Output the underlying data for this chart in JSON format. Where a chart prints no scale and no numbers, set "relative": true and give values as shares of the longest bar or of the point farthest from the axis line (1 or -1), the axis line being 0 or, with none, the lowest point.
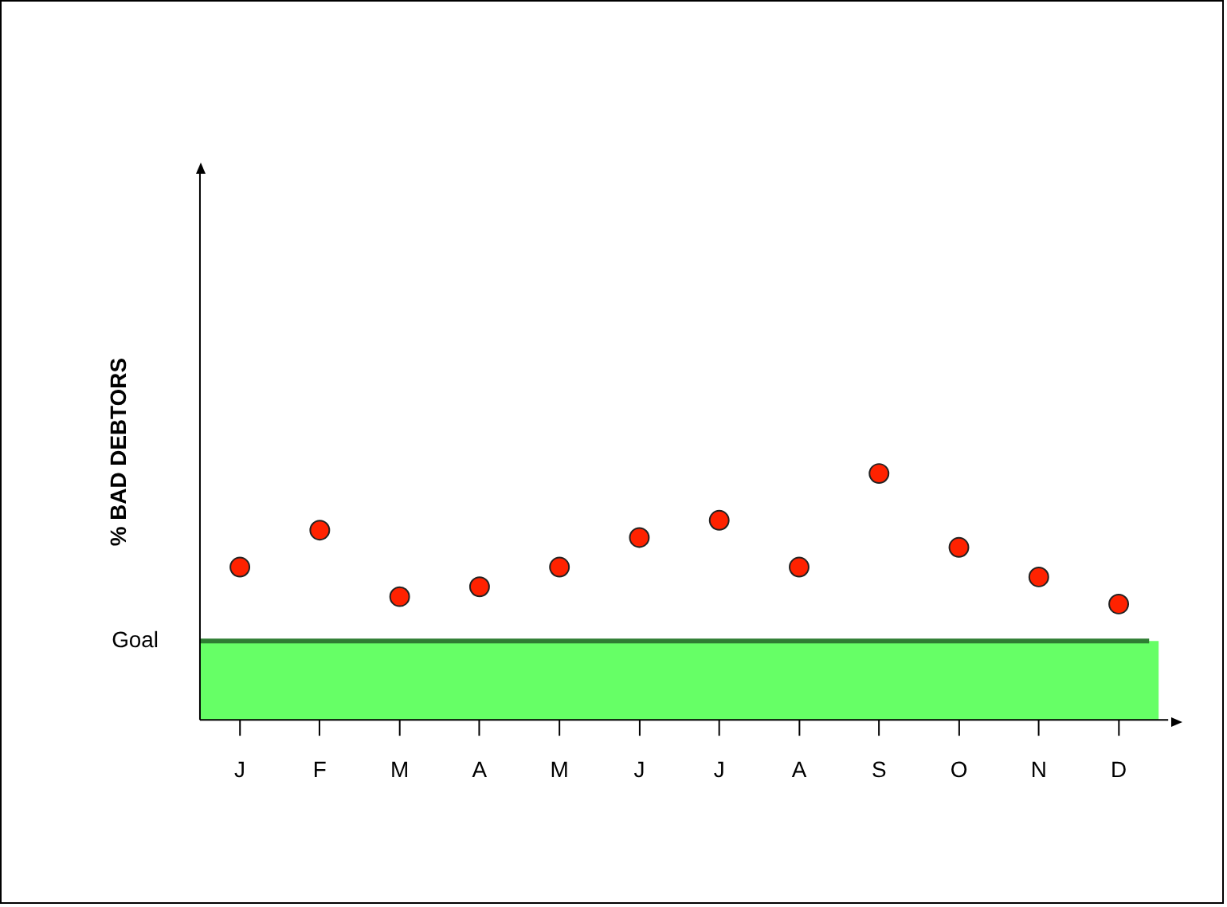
{
  "chart_data": {
    "type": "scatter",
    "ylabel": "% BAD DEBTORS",
    "categories": [
      "J",
      "F",
      "M",
      "A",
      "M",
      "J",
      "J",
      "A",
      "S",
      "O",
      "N",
      "D"
    ],
    "relative": true,
    "series": [
      {
        "color": "#ff2200",
        "values": [
          0.62,
          0.77,
          0.5,
          0.54,
          0.62,
          0.74,
          0.81,
          0.62,
          1,
          0.7,
          0.58,
          0.47
        ]
      }
    ],
    "bands": [
      {
        "axis": "y",
        "from": 0,
        "to": 0.32,
        "color": "#66ff66"
      }
    ],
    "ref_lines": [
      {
        "axis": "y",
        "value": 0.32,
        "label": "Goal",
        "color": "#2e7d32"
      }
    ],
    "marker": "circle",
    "grid": false,
    "legend": false
  }
}
